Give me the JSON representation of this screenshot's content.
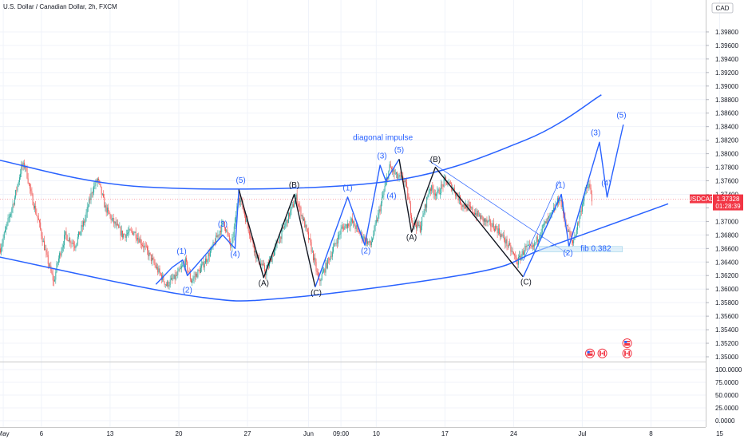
{
  "header": {
    "symbol_title": "U.S. Dollar / Canadian Dollar, 2h, FXCM",
    "currency": "CAD"
  },
  "colors": {
    "up": "#26a69a",
    "down": "#ef5350",
    "wave_blue": "#2962ff",
    "wave_black": "#131722",
    "price_line": "#f23645",
    "fib_box": "#c8e6f5"
  },
  "chart_data": {
    "type": "candlestick",
    "price_axis": {
      "min": 1.35,
      "max": 1.4,
      "ticks": [
        "1.39800",
        "1.39600",
        "1.39400",
        "1.39200",
        "1.39000",
        "1.38800",
        "1.38600",
        "1.38400",
        "1.38200",
        "1.38000",
        "1.37800",
        "1.37600",
        "1.37400",
        "1.37200",
        "1.37000",
        "1.36800",
        "1.36600",
        "1.36400",
        "1.36200",
        "1.36000",
        "1.35800",
        "1.35600",
        "1.35400",
        "1.35200",
        "1.35000"
      ]
    },
    "indicator_axis": {
      "min": 0,
      "max": 100,
      "ticks": [
        "100.0000",
        "75.0000",
        "50.0000",
        "25.0000",
        "0.0000"
      ]
    },
    "time_axis": {
      "labels": [
        {
          "label": "May",
          "idx": 3
        },
        {
          "label": "6",
          "idx": 43
        },
        {
          "label": "13",
          "idx": 115
        },
        {
          "label": "20",
          "idx": 187
        },
        {
          "label": "27",
          "idx": 259
        },
        {
          "label": "Jun",
          "idx": 323
        },
        {
          "label": "09:00",
          "idx": 357
        },
        {
          "label": "10",
          "idx": 394
        },
        {
          "label": "17",
          "idx": 466
        },
        {
          "label": "24",
          "idx": 538
        },
        {
          "label": "Jul",
          "idx": 610
        },
        {
          "label": "8",
          "idx": 682
        },
        {
          "label": "15",
          "idx": 754
        }
      ]
    },
    "candle_count": 644,
    "price_path": [
      [
        0,
        1.366
      ],
      [
        8,
        1.37
      ],
      [
        15,
        1.3735
      ],
      [
        22,
        1.378
      ],
      [
        26,
        1.3783
      ],
      [
        32,
        1.374
      ],
      [
        40,
        1.37
      ],
      [
        48,
        1.365
      ],
      [
        56,
        1.361
      ],
      [
        60,
        1.364
      ],
      [
        68,
        1.368
      ],
      [
        78,
        1.3665
      ],
      [
        88,
        1.37
      ],
      [
        96,
        1.3745
      ],
      [
        102,
        1.3762
      ],
      [
        110,
        1.372
      ],
      [
        118,
        1.37
      ],
      [
        128,
        1.368
      ],
      [
        140,
        1.3685
      ],
      [
        152,
        1.366
      ],
      [
        164,
        1.363
      ],
      [
        174,
        1.3606
      ],
      [
        184,
        1.3618
      ],
      [
        194,
        1.364
      ],
      [
        200,
        1.3612
      ],
      [
        210,
        1.363
      ],
      [
        222,
        1.366
      ],
      [
        234,
        1.37
      ],
      [
        242,
        1.366
      ],
      [
        250,
        1.374
      ],
      [
        258,
        1.37
      ],
      [
        268,
        1.365
      ],
      [
        278,
        1.3625
      ],
      [
        288,
        1.366
      ],
      [
        300,
        1.37
      ],
      [
        310,
        1.3735
      ],
      [
        318,
        1.37
      ],
      [
        326,
        1.366
      ],
      [
        334,
        1.361
      ],
      [
        346,
        1.365
      ],
      [
        358,
        1.369
      ],
      [
        368,
        1.37
      ],
      [
        378,
        1.368
      ],
      [
        388,
        1.3665
      ],
      [
        398,
        1.372
      ],
      [
        408,
        1.378
      ],
      [
        416,
        1.3765
      ],
      [
        424,
        1.376
      ],
      [
        432,
        1.37
      ],
      [
        440,
        1.369
      ],
      [
        450,
        1.375
      ],
      [
        458,
        1.374
      ],
      [
        466,
        1.376
      ],
      [
        474,
        1.375
      ],
      [
        484,
        1.3725
      ],
      [
        496,
        1.3715
      ],
      [
        508,
        1.37
      ],
      [
        520,
        1.369
      ],
      [
        532,
        1.3665
      ],
      [
        542,
        1.364
      ],
      [
        550,
        1.366
      ],
      [
        558,
        1.366
      ],
      [
        568,
        1.369
      ],
      [
        578,
        1.371
      ],
      [
        586,
        1.3735
      ],
      [
        594,
        1.369
      ],
      [
        600,
        1.3668
      ],
      [
        606,
        1.37
      ],
      [
        612,
        1.374
      ],
      [
        617,
        1.3754
      ],
      [
        620,
        1.3732
      ]
    ],
    "last_price": {
      "symbol": "USDCAD",
      "price": "1.37328",
      "countdown": "01:28:39",
      "value": 1.37328
    },
    "channel": {
      "upper": [
        [
          -3,
          1.3791
        ],
        [
          150,
          1.3751
        ],
        [
          400,
          1.3758
        ],
        [
          550,
          1.382
        ],
        [
          630,
          1.3887
        ]
      ],
      "lower": [
        [
          -3,
          1.3648
        ],
        [
          200,
          1.359
        ],
        [
          300,
          1.3587
        ],
        [
          500,
          1.3625
        ],
        [
          570,
          1.366
        ],
        [
          700,
          1.3726
        ]
      ]
    },
    "fib_box": {
      "label": "fib 0.382",
      "idx_start": 565,
      "idx_end": 652,
      "price_top": 1.3663,
      "price_bottom": 1.3655
    },
    "overlays": [
      {
        "color": "wave_blue",
        "points": [
          [
            163,
            1.3607
          ],
          [
            180,
            1.3632
          ],
          [
            191,
            1.3643
          ],
          [
            196,
            1.362
          ],
          [
            233,
            1.368
          ],
          [
            246,
            1.366
          ],
          [
            250,
            1.3747
          ]
        ]
      },
      {
        "color": "wave_black",
        "points": [
          [
            250,
            1.3747
          ],
          [
            276,
            1.3617
          ],
          [
            308,
            1.374
          ],
          [
            330,
            1.3603
          ]
        ]
      },
      {
        "color": "wave_blue",
        "points": [
          [
            330,
            1.3603
          ],
          [
            364,
            1.3736
          ],
          [
            382,
            1.3665
          ],
          [
            398,
            1.3783
          ],
          [
            404,
            1.376
          ],
          [
            418,
            1.3792
          ]
        ]
      },
      {
        "color": "wave_black",
        "points": [
          [
            418,
            1.3792
          ],
          [
            431,
            1.3684
          ],
          [
            456,
            1.378
          ],
          [
            548,
            1.3618
          ]
        ]
      },
      {
        "color": "wave_blue",
        "points": [
          [
            548,
            1.3618
          ],
          [
            588,
            1.374
          ],
          [
            596,
            1.3663
          ],
          [
            628,
            1.3817
          ],
          [
            636,
            1.3736
          ],
          [
            653,
            1.3843
          ]
        ]
      }
    ],
    "thin_lines": [
      {
        "points": [
          [
            449,
            1.379
          ],
          [
            595,
            1.3652
          ]
        ]
      },
      {
        "points": [
          [
            548,
            1.3642
          ],
          [
            586,
            1.376
          ]
        ]
      }
    ],
    "wave_labels": [
      {
        "text": "(1)",
        "idx": 190,
        "price": 1.3652,
        "color": "wave_blue"
      },
      {
        "text": "(2)",
        "idx": 196,
        "price": 1.3595,
        "color": "wave_blue"
      },
      {
        "text": "(3)",
        "idx": 233,
        "price": 1.3692,
        "color": "wave_blue"
      },
      {
        "text": "(4)",
        "idx": 246,
        "price": 1.3648,
        "color": "wave_blue"
      },
      {
        "text": "(5)",
        "idx": 252,
        "price": 1.3757,
        "color": "wave_blue"
      },
      {
        "text": "(A)",
        "idx": 276,
        "price": 1.3605,
        "color": "wave_black"
      },
      {
        "text": "(B)",
        "idx": 308,
        "price": 1.375,
        "color": "wave_black"
      },
      {
        "text": "(C)",
        "idx": 331,
        "price": 1.3591,
        "color": "wave_black"
      },
      {
        "text": "(1)",
        "idx": 364,
        "price": 1.3746,
        "color": "wave_blue"
      },
      {
        "text": "(2)",
        "idx": 383,
        "price": 1.3653,
        "color": "wave_blue"
      },
      {
        "text": "(3)",
        "idx": 400,
        "price": 1.3793,
        "color": "wave_blue"
      },
      {
        "text": "(4)",
        "idx": 410,
        "price": 1.3734,
        "color": "wave_blue"
      },
      {
        "text": "(5)",
        "idx": 418,
        "price": 1.3802,
        "color": "wave_blue"
      },
      {
        "text": "(A)",
        "idx": 431,
        "price": 1.3673,
        "color": "wave_black"
      },
      {
        "text": "(B)",
        "idx": 456,
        "price": 1.3788,
        "color": "wave_black"
      },
      {
        "text": "(C)",
        "idx": 551,
        "price": 1.3607,
        "color": "wave_black"
      },
      {
        "text": "(1)",
        "idx": 587,
        "price": 1.375,
        "color": "wave_blue"
      },
      {
        "text": "(2)",
        "idx": 595,
        "price": 1.365,
        "color": "wave_blue"
      },
      {
        "text": "(3)",
        "idx": 624,
        "price": 1.3827,
        "color": "wave_blue"
      },
      {
        "text": "(4)",
        "idx": 635,
        "price": 1.3753,
        "color": "wave_blue"
      },
      {
        "text": "(5)",
        "idx": 651,
        "price": 1.3853,
        "color": "wave_blue"
      }
    ],
    "annotations": [
      {
        "text": "diagonal impulse",
        "idx": 401,
        "price": 1.382,
        "color": "wave_blue"
      }
    ],
    "event_flags": [
      {
        "idx": 618,
        "price": 1.3505,
        "icon": "us-flag-icon"
      },
      {
        "idx": 631,
        "price": 1.3505,
        "icon": "ca-flag-icon"
      },
      {
        "idx": 657,
        "price": 1.352,
        "icon": "us-flag-icon"
      },
      {
        "idx": 657,
        "price": 1.3505,
        "icon": "ca-flag-icon"
      }
    ]
  }
}
